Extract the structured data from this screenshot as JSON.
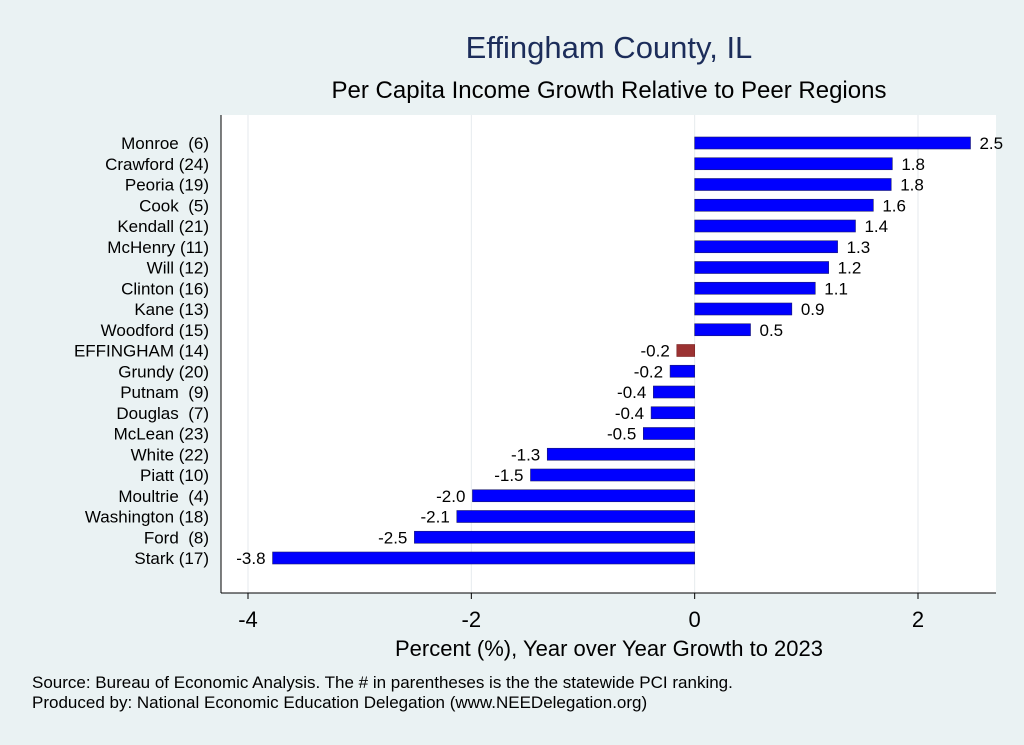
{
  "title": "Effingham County, IL",
  "subtitle": "Per Capita Income Growth Relative to Peer Regions",
  "notes": {
    "source": "Source: Bureau of Economic Analysis. The # in parentheses is the the statewide PCI ranking.",
    "produced": "Produced by: National Economic Education Delegation (www.NEEDelegation.org)"
  },
  "colors": {
    "bar": "#0000ff",
    "highlight": "#9b3232",
    "plot_bg": "#ffffff",
    "page_bg": "#eaf2f3",
    "title": "#1c2d5a"
  },
  "chart_data": {
    "type": "bar",
    "orientation": "horizontal",
    "xlabel": "Percent (%), Year over Year Growth to 2023",
    "xlim": [
      -4.2,
      2.7
    ],
    "xticks": [
      -4,
      -2,
      0,
      2
    ],
    "grid": true,
    "highlight_category": "EFFINGHAM (14)",
    "categories": [
      "Monroe  (6)",
      "Crawford (24)",
      "Peoria (19)",
      "Cook  (5)",
      "Kendall (21)",
      "McHenry (11)",
      "Will (12)",
      "Clinton (16)",
      "Kane (13)",
      "Woodford (15)",
      "EFFINGHAM (14)",
      "Grundy (20)",
      "Putnam  (9)",
      "Douglas  (7)",
      "McLean (23)",
      "White (22)",
      "Piatt (10)",
      "Moultrie  (4)",
      "Washington (18)",
      "Ford  (8)",
      "Stark (17)"
    ],
    "values": [
      2.47,
      1.77,
      1.76,
      1.6,
      1.44,
      1.28,
      1.2,
      1.08,
      0.87,
      0.5,
      -0.16,
      -0.22,
      -0.37,
      -0.39,
      -0.46,
      -1.32,
      -1.47,
      -1.99,
      -2.13,
      -2.51,
      -3.78
    ],
    "value_labels": [
      "2.5",
      "1.8",
      "1.8",
      "1.6",
      "1.4",
      "1.3",
      "1.2",
      "1.1",
      "0.9",
      "0.5",
      "-0.2",
      "-0.2",
      "-0.4",
      "-0.4",
      "-0.5",
      "-1.3",
      "-1.5",
      "-2.0",
      "-2.1",
      "-2.5",
      "-3.8"
    ]
  }
}
